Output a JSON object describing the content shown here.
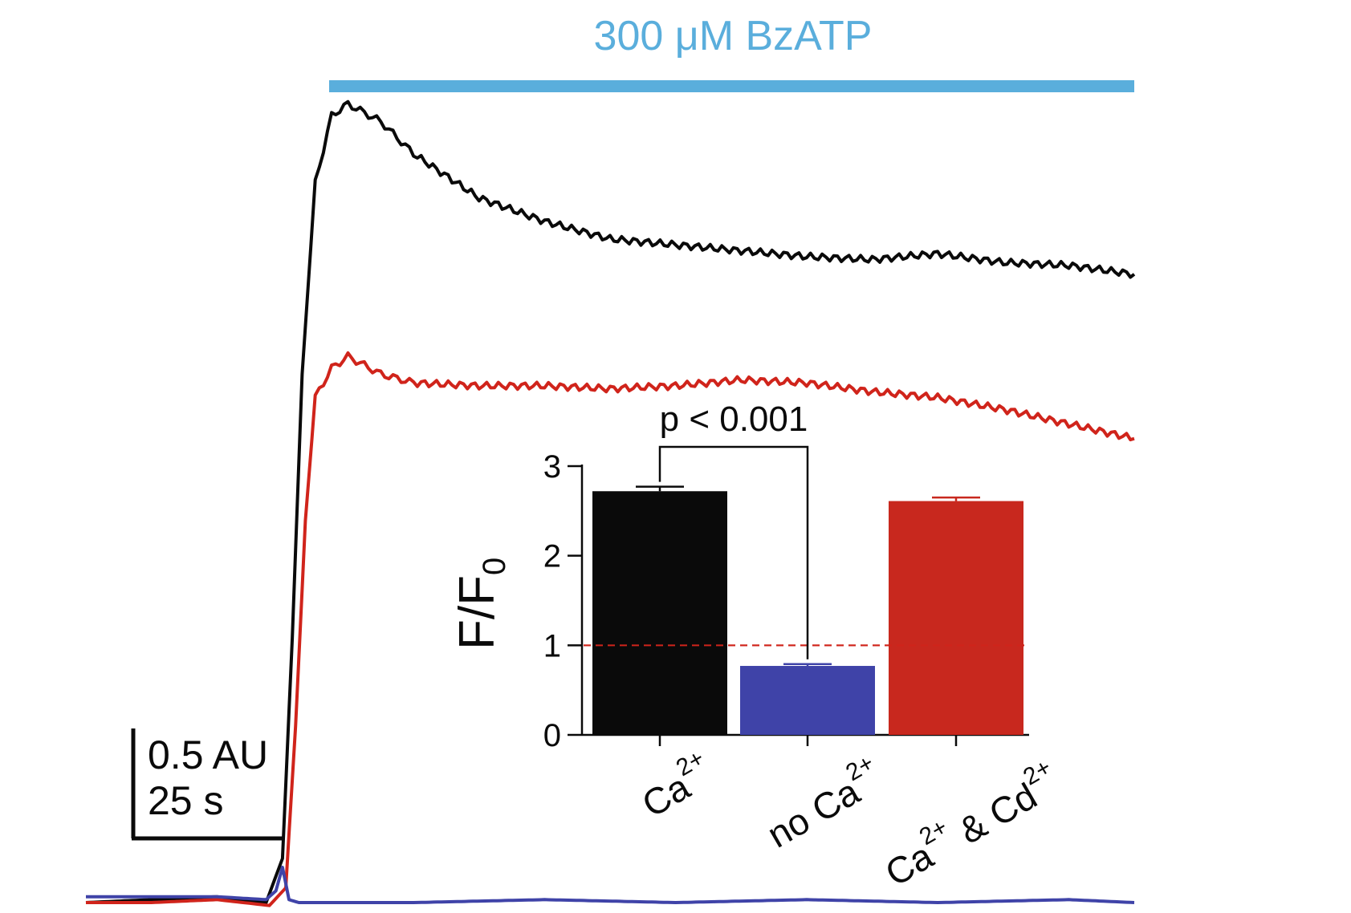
{
  "colors": {
    "black": "#0a0a0a",
    "red": "#d0241b",
    "blue": "#3f43a8",
    "bar_red": "#c8281e",
    "drug_bar": "#5aaedc",
    "baseline_dash": "#d0241b"
  },
  "treatment": {
    "label": "300 μM BzATP"
  },
  "scale_bar": {
    "y_label": "0.5 AU",
    "x_label": "25 s"
  },
  "chart_data": [
    {
      "type": "line",
      "xlabel": "",
      "ylabel": "",
      "x_unit_scale": "25 s",
      "y_unit_scale": "0.5 AU",
      "stimulus_window": {
        "label": "300 μM BzATP"
      },
      "series": [
        {
          "color": "#0a0a0a",
          "x": [
            0,
            20,
            40,
            55,
            60,
            63,
            66,
            70,
            75,
            80,
            90,
            100,
            120,
            140,
            160,
            180,
            200,
            220,
            240,
            260,
            280,
            300,
            320
          ],
          "y": [
            0.0,
            0.01,
            0.02,
            0.0,
            0.15,
            0.9,
            1.8,
            2.45,
            2.68,
            2.72,
            2.66,
            2.55,
            2.4,
            2.32,
            2.26,
            2.24,
            2.22,
            2.2,
            2.19,
            2.21,
            2.18,
            2.17,
            2.14
          ]
        },
        {
          "color": "#d0241b",
          "x": [
            0,
            20,
            40,
            56,
            61,
            64,
            67,
            70,
            75,
            80,
            90,
            100,
            120,
            140,
            160,
            180,
            200,
            220,
            240,
            260,
            280,
            300,
            320
          ],
          "y": [
            0.0,
            0.0,
            0.01,
            -0.01,
            0.05,
            0.6,
            1.3,
            1.72,
            1.82,
            1.86,
            1.8,
            1.77,
            1.76,
            1.76,
            1.75,
            1.76,
            1.78,
            1.77,
            1.74,
            1.72,
            1.68,
            1.63,
            1.58
          ]
        },
        {
          "color": "#3f43a8",
          "x": [
            0,
            20,
            40,
            55,
            58,
            60,
            62,
            65,
            80,
            100,
            140,
            180,
            220,
            260,
            300,
            320
          ],
          "y": [
            0.02,
            0.02,
            0.02,
            0.01,
            0.04,
            0.12,
            0.01,
            0.0,
            0.0,
            0.0,
            0.01,
            0.0,
            0.01,
            0.0,
            0.01,
            0.0
          ]
        }
      ]
    },
    {
      "type": "bar",
      "ylabel": "F/F0",
      "ylabel_main": "F/F",
      "ylabel_sub": "0",
      "ylim": [
        0,
        3
      ],
      "yticks": [
        "0",
        "1",
        "2",
        "3"
      ],
      "reference_line": 1,
      "categories": [
        {
          "main": "Ca",
          "sup": "2+"
        },
        {
          "main": "no Ca",
          "sup": "2+"
        },
        {
          "main1": "Ca",
          "sup1": "2+",
          "mid": " & Cd",
          "sup2": "2+"
        }
      ],
      "values": [
        2.72,
        0.77,
        2.61
      ],
      "errors": [
        0.05,
        0.02,
        0.04
      ],
      "bar_colors": [
        "#0a0a0a",
        "#3f43a8",
        "#c8281e"
      ],
      "significance": {
        "label": "p < 0.001",
        "between": [
          0,
          1
        ]
      }
    }
  ]
}
